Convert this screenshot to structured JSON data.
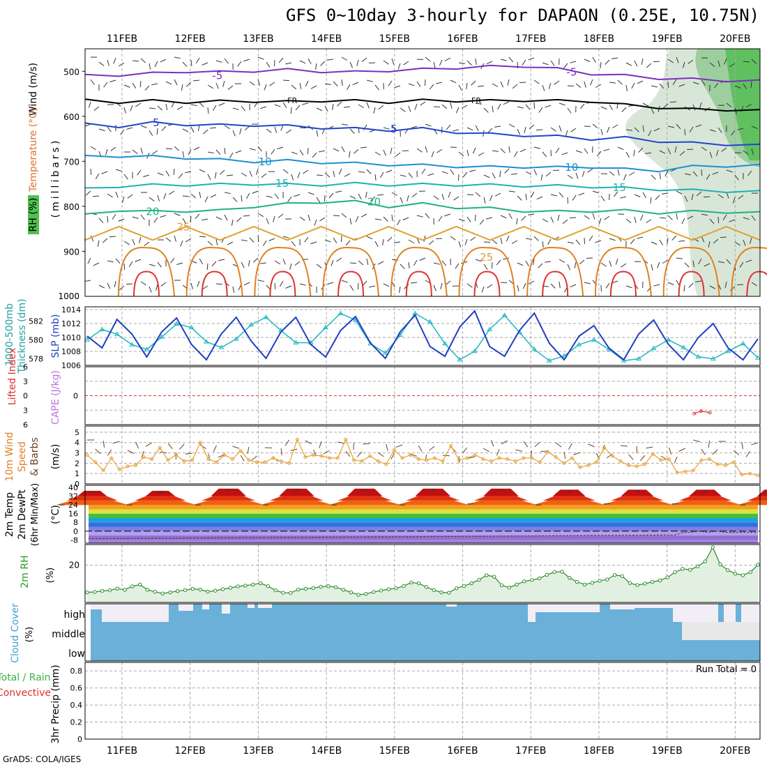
{
  "header": {
    "title": "GFS 0~10day 3-hourly for DAPAON (0.25E, 10.75N)",
    "credit": "GrADS: COLA/IGES"
  },
  "colors": {
    "temperature_contour": "#7b2fbf",
    "wind_label": "#000000",
    "slp_line": "#1f3fbf",
    "thickness_line": "#20b6c0",
    "lifted_index": "#e03030",
    "cape": "#c070e0",
    "wind_speed_line": "#e8a030",
    "rh_line": "#2a8a2a",
    "cloud_cover": "#6ab0d8",
    "precip_total": "#3cb043",
    "precip_convective": "#e03030"
  },
  "chart_data": [
    {
      "panel": "upper_air",
      "type": "heatmap",
      "x_tick_labels": [
        "11FEB",
        "12FEB",
        "13FEB",
        "14FEB",
        "15FEB",
        "16FEB",
        "17FEB",
        "18FEB",
        "19FEB",
        "20FEB"
      ],
      "ylabel": [
        "Wind (m/s)",
        "Temperature (°C)",
        "RH (%)",
        "(millibars)"
      ],
      "y_ticks": [
        500,
        600,
        700,
        800,
        900,
        1000
      ],
      "ylim": [
        1000,
        450
      ],
      "contour_labels": [
        {
          "text": "-5",
          "day": 1.4,
          "p": 510
        },
        {
          "text": "-5",
          "day": 6.6,
          "p": 502
        },
        {
          "text": "FR",
          "day": 2.5,
          "p": 563
        },
        {
          "text": "FR",
          "day": 5.2,
          "p": 563
        },
        {
          "text": "5",
          "day": 0.5,
          "p": 614
        },
        {
          "text": "5",
          "day": 3.99,
          "p": 628
        },
        {
          "text": "10",
          "day": 2.1,
          "p": 701
        },
        {
          "text": "10",
          "day": 6.6,
          "p": 713
        },
        {
          "text": "15",
          "day": 2.35,
          "p": 749
        },
        {
          "text": "15",
          "day": 7.3,
          "p": 758
        },
        {
          "text": "20",
          "day": 0.45,
          "p": 812
        },
        {
          "text": "20",
          "day": 3.7,
          "p": 790
        },
        {
          "text": "25",
          "day": 0.9,
          "p": 846
        },
        {
          "text": "25",
          "day": 5.35,
          "p": 913
        }
      ],
      "isotherms": [
        {
          "temp": -5,
          "p": [
            510,
            508,
            505,
            500,
            502,
            499,
            497,
            500,
            502,
            498,
            496,
            492,
            490,
            488,
            495,
            505,
            510,
            515,
            518,
            520,
            522
          ]
        },
        {
          "temp": 0,
          "p": [
            565,
            568,
            566,
            568,
            567,
            566,
            568,
            565,
            566,
            568,
            565,
            565,
            566,
            564,
            566,
            566,
            575,
            580,
            585,
            585,
            588
          ]
        },
        {
          "temp": 5,
          "p": [
            618,
            622,
            615,
            618,
            620,
            619,
            622,
            625,
            628,
            630,
            628,
            635,
            640,
            642,
            645,
            650,
            648,
            655,
            660,
            662,
            665
          ]
        },
        {
          "temp": 10,
          "p": [
            690,
            688,
            690,
            692,
            697,
            700,
            699,
            702,
            705,
            707,
            709,
            711,
            713,
            712,
            714,
            712,
            718,
            720,
            712,
            710,
            710
          ]
        },
        {
          "temp": 15,
          "p": [
            762,
            755,
            753,
            752,
            752,
            750,
            752,
            752,
            750,
            752,
            752,
            752,
            753,
            754,
            755,
            756,
            760,
            762,
            765,
            766,
            768
          ]
        },
        {
          "temp": 20,
          "p": [
            820,
            808,
            812,
            810,
            810,
            800,
            795,
            790,
            790,
            800,
            795,
            802,
            805,
            810,
            812,
            810,
            810,
            814,
            812,
            812,
            815
          ]
        }
      ]
    },
    {
      "panel": "slp_thickness",
      "type": "line",
      "ylabel": [
        "1000-500mb",
        "Thickness (dm)",
        "SLP (mb)"
      ],
      "slp_ticks": [
        1006,
        1008,
        1010,
        1012,
        1014
      ],
      "thickness_ticks": [
        578,
        580,
        582
      ],
      "series": [
        {
          "name": "SLP (mb)",
          "values": [
            1010.2,
            1008.5,
            1012.6,
            1010.5,
            1007.2,
            1010.8,
            1012.8,
            1009.0,
            1006.8,
            1010.5,
            1012.9,
            1009.5,
            1007.0,
            1010.8,
            1012.9,
            1009.0,
            1007.2,
            1011.0,
            1013.0,
            1009.2,
            1007.0,
            1010.8,
            1013.2,
            1008.7,
            1007.3,
            1011.5,
            1013.8,
            1008.7,
            1007.3,
            1011.0,
            1013.5,
            1009.2,
            1006.8,
            1010.2,
            1011.7,
            1008.5,
            1006.8,
            1010.5,
            1012.5,
            1009.0,
            1006.8,
            1010.0,
            1012.0,
            1008.5,
            1006.8,
            1009.8
          ]
        },
        {
          "name": "1000-500mb Thickness (dm)",
          "values": [
            580.0,
            581.1,
            580.6,
            579.5,
            579.0,
            580.3,
            581.7,
            581.3,
            579.8,
            579.2,
            580.1,
            581.6,
            582.4,
            581.0,
            579.7,
            579.7,
            581.3,
            582.8,
            582.1,
            579.6,
            578.6,
            580.5,
            582.8,
            581.9,
            579.6,
            577.9,
            578.8,
            581.1,
            582.6,
            580.8,
            579.0,
            577.8,
            578.3,
            579.5,
            580.0,
            579.0,
            577.8,
            578.0,
            579.1,
            580.0,
            579.2,
            578.2,
            578.0,
            578.8,
            579.6,
            578.1
          ]
        }
      ]
    },
    {
      "panel": "lifted_index_cape",
      "type": "line",
      "ylabel": [
        "Lifted Index",
        "CAPE (J/kg)"
      ],
      "y_ticks": [
        -6,
        -3,
        0,
        3,
        6
      ],
      "series": [
        {
          "name": "CAPE (J/kg)",
          "points": [
            [
              8.4,
              3.7
            ],
            [
              8.5,
              3.2
            ],
            [
              8.63,
              3.5
            ]
          ]
        }
      ]
    },
    {
      "panel": "wind_10m",
      "type": "line",
      "ylabel": [
        "10m Wind",
        "Speed",
        "& Barbs",
        "(m/s)"
      ],
      "y_ticks": [
        0,
        1,
        2,
        3,
        4,
        5
      ],
      "series": [
        {
          "name": "10m Wind Speed",
          "values": [
            2.8,
            2.1,
            1.3,
            2.5,
            1.4,
            1.7,
            1.8,
            2.6,
            2.4,
            3.5,
            2.3,
            2.8,
            2.2,
            2.3,
            4.0,
            2.4,
            2.1,
            2.8,
            2.4,
            3.2,
            2.3,
            2.1,
            2.1,
            2.5,
            2.2,
            2.0,
            4.3,
            2.6,
            2.8,
            2.7,
            2.5,
            2.5,
            4.3,
            2.3,
            2.2,
            2.7,
            2.2,
            1.9,
            3.3,
            2.5,
            2.8,
            2.4,
            2.3,
            2.5,
            2.2,
            3.7,
            2.3,
            2.5,
            2.8,
            2.4,
            2.2,
            2.5,
            2.4,
            2.2,
            2.5,
            2.5,
            2.1,
            3.1,
            2.6,
            2.0,
            2.5,
            1.6,
            1.8,
            2.1,
            3.5,
            2.7,
            2.2,
            1.8,
            1.7,
            1.9,
            2.9,
            2.3,
            2.4,
            1.1,
            1.2,
            1.3,
            2.3,
            2.4,
            1.9,
            1.8,
            2.1,
            0.9,
            1.0,
            0.8
          ]
        }
      ]
    },
    {
      "panel": "temp_2m",
      "type": "area",
      "ylabel": [
        "2m Temp",
        "2m DewPt",
        "(6hr Min/Max)",
        "(°C)"
      ],
      "y_ticks": [
        -8,
        0,
        8,
        16,
        24,
        32,
        40
      ],
      "temp_profile": {
        "max_per_day": [
          37,
          39,
          39,
          39,
          39,
          39,
          38,
          38,
          38,
          38
        ],
        "min_per_day": [
          24,
          24,
          24,
          24,
          24,
          25,
          24,
          25,
          25,
          24
        ]
      },
      "dewpoint_range": [
        -8,
        -2
      ]
    },
    {
      "panel": "rh_2m",
      "type": "area",
      "ylabel": [
        "2m RH",
        "(%)"
      ],
      "y_ticks": [
        20
      ],
      "series": [
        {
          "name": "2m RH",
          "values": [
            5.4,
            5.6,
            6.2,
            6.5,
            7.4,
            6.8,
            8.6,
            9.6,
            6.8,
            5.7,
            4.8,
            5.4,
            6.1,
            6.6,
            7.3,
            6.9,
            5.8,
            6.3,
            7.1,
            7.8,
            8.6,
            9.0,
            9.6,
            10.3,
            8.7,
            6.5,
            5.2,
            5.1,
            6.9,
            7.3,
            7.7,
            8.4,
            8.7,
            8.2,
            6.8,
            5.4,
            4.1,
            4.6,
            5.6,
            6.4,
            7.1,
            7.6,
            8.8,
            10.7,
            10.2,
            8.3,
            6.6,
            5.4,
            5.2,
            7.6,
            8.8,
            10.3,
            12.1,
            14.6,
            13.8,
            9.2,
            8.0,
            9.6,
            11.3,
            12.0,
            12.9,
            14.8,
            16.3,
            16.5,
            13.2,
            11.0,
            9.6,
            10.5,
            11.6,
            12.3,
            14.7,
            14.1,
            10.4,
            9.3,
            10.1,
            11.0,
            11.8,
            13.4,
            16.2,
            18.0,
            17.5,
            19.3,
            22.0,
            29.5,
            20.4,
            17.3,
            15.4,
            14.6,
            16.2,
            20.2
          ]
        }
      ]
    },
    {
      "panel": "cloud_cover",
      "type": "heatmap",
      "ylabel": [
        "Cloud Cover",
        "(%)"
      ],
      "levels": [
        "high",
        "middle",
        "low"
      ]
    },
    {
      "panel": "precip",
      "type": "bar",
      "ylabel": [
        "Total / Rain",
        "Convective",
        "3hr Precip (mm)"
      ],
      "y_ticks": [
        0,
        0.2,
        0.4,
        0.6,
        0.8
      ],
      "ylim": [
        0,
        0.9
      ],
      "run_total_label": "Run Total = 0",
      "values": []
    }
  ]
}
